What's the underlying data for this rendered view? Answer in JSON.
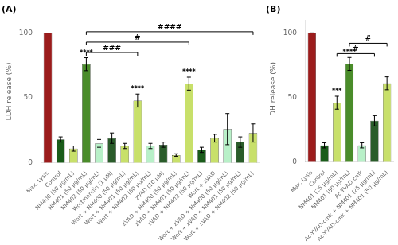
{
  "chart_data": [
    {
      "type": "bar",
      "title": "(A)",
      "ylabel": "LDH release (%)",
      "categories": [
        "Max. Lysis",
        "Control",
        "NM400 (50 μg/mL)",
        "NM401 (50 μg/mL)",
        "NM402 (50 μg/mL)",
        "Wortmannin (1 μM)",
        "Wort + NM400 (50 μg/mL)",
        "Wort + NM401 (50 μg/mL)",
        "Wort + NM402 (50 μg/mL)",
        "zVAD (10 μM)",
        "zVAD + NM400 (50 μg/mL)",
        "zVAD + NM401 (50 μg/mL)",
        "zVAD + NM402 (50 μg/mL)",
        "Wort + zVAD",
        "Wort + zVAD + NM400 (50 μg/mL)",
        "Wort + zVAD + NM401 (50 μg/mL)",
        "Wort + zVAD + NM402 (50 μg/mL)"
      ],
      "values": [
        100,
        18,
        11,
        76,
        15,
        19,
        13,
        48,
        13,
        14,
        6,
        61,
        10,
        19,
        26,
        16,
        23
      ],
      "errors": [
        0,
        2,
        2,
        5,
        3,
        4,
        2,
        5,
        2,
        2,
        1,
        5,
        2,
        3,
        12,
        4,
        7
      ],
      "colors": [
        "#9b1c1c",
        "#1a5c1a",
        "#c8e06a",
        "#4a8c2a",
        "#b8f0c8",
        "#2a5c2a",
        "#c8e06a",
        "#c8e06a",
        "#b8f0c8",
        "#2a5c2a",
        "#c8e06a",
        "#c8e06a",
        "#1a5c1a",
        "#c8e06a",
        "#b8f0c8",
        "#2a5c2a",
        "#c8e06a"
      ],
      "sig_labels": [
        {
          "index": 3,
          "label": "****"
        },
        {
          "index": 7,
          "label": "****"
        },
        {
          "index": 11,
          "label": "****"
        }
      ],
      "brackets": [
        {
          "from": 3,
          "to": 7,
          "y": 85,
          "label": "###"
        },
        {
          "from": 3,
          "to": 11,
          "y": 93,
          "label": "#"
        },
        {
          "from": 3,
          "to": 16,
          "y": 101,
          "label": "####"
        }
      ],
      "ylim": [
        0,
        110
      ],
      "yticks": [
        0,
        50,
        100
      ],
      "grid": false
    },
    {
      "type": "bar",
      "title": "(B)",
      "ylabel": "LDH release (%)",
      "categories": [
        "Max. Lysis",
        "Control",
        "NM401 (25 μg/mL)",
        "NM401 (50 μg/mL)",
        "Ac-YVAD-cmk",
        "Ac-YVAD-cmk + NM401 (25 μg/mL)",
        "Ac-YVAD-cmk + NM401 (50 μg/mL)"
      ],
      "values": [
        100,
        13,
        46,
        76,
        13,
        32,
        61
      ],
      "errors": [
        0,
        2,
        5,
        5,
        2,
        4,
        5
      ],
      "colors": [
        "#9b1c1c",
        "#1a5c1a",
        "#c8e06a",
        "#4a8c2a",
        "#b8f0c8",
        "#2a5c2a",
        "#c8e06a"
      ],
      "sig_labels": [
        {
          "index": 2,
          "label": "***"
        },
        {
          "index": 3,
          "label": "****"
        }
      ],
      "brackets": [
        {
          "from": 2,
          "to": 5,
          "y": 84,
          "label": "#"
        },
        {
          "from": 3,
          "to": 6,
          "y": 92,
          "label": "#"
        }
      ],
      "ylim": [
        0,
        110
      ],
      "yticks": [
        0,
        50,
        100
      ],
      "grid": false
    }
  ]
}
